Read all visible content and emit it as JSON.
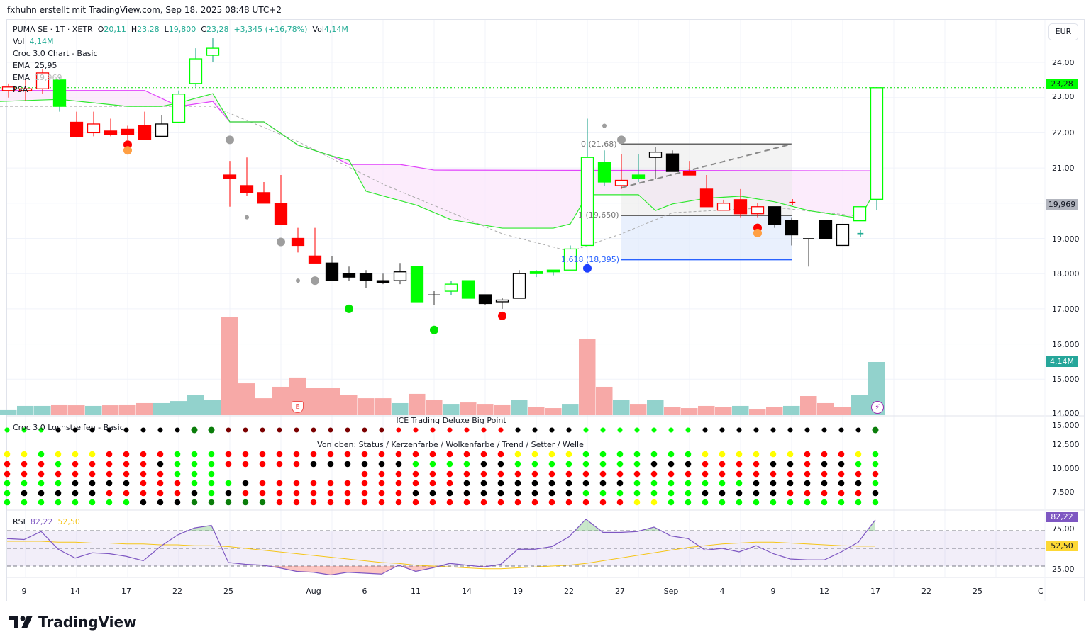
{
  "header": {
    "credit": "fxhuhn erstellt mit TradingView.com, Sep 18, 2025 08:48 UTC+2"
  },
  "legend": {
    "symbol": "PUMA SE · 1T · XETR",
    "o_label": "O",
    "o": "20,11",
    "h_label": "H",
    "h": "23,28",
    "l_label": "L",
    "l": "19,800",
    "c_label": "C",
    "c": "23,28",
    "change": "+3,345 (+16,78%)",
    "vol_label": "Vol",
    "vol": "4,14M",
    "vol_row_label": "Vol",
    "vol_row_value": "4,14M",
    "indicator": "Croc 3.0 Chart - Basic",
    "ema1_label": "EMA",
    "ema1_value": "25,95",
    "ema2_label": "EMA",
    "ema2_value": "19,969",
    "psa_label": "PSA"
  },
  "currency": "EUR",
  "price_axis": [
    "24,00",
    "23,00",
    "22,00",
    "21,00",
    "19,000",
    "18,000",
    "17,000",
    "16,000",
    "15,000",
    "14,000"
  ],
  "price_axis_values": [
    24,
    23,
    22,
    21,
    19,
    18,
    17,
    16,
    15,
    14
  ],
  "dots_axis": [
    "15,000",
    "12,500",
    "10,000",
    "7,500"
  ],
  "rsi_axis": [
    "75,00",
    "25,00"
  ],
  "badges": {
    "last_price": "23,28",
    "ema": "19,969",
    "volume": "4,14M",
    "rsi": "82,22",
    "rsi_ma": "52,50"
  },
  "colors": {
    "up": "#00ff00",
    "down": "#ff0000",
    "teal": "#089981",
    "ema_slow": "#e040fb",
    "ema_fast": "#2ee82e",
    "cloud": "#fbe7fb",
    "vol_up": "#92d2cc",
    "vol_down": "#f7a9a7",
    "rsi": "#7e57c2",
    "rsi_ma": "#f5c518"
  },
  "fib": {
    "level0": "0 (21,68)",
    "level1": "1 (19,650)",
    "level1618": "1,618 (18,395)",
    "p0": 21.68,
    "p1": 19.65,
    "p1618": 18.395,
    "from": 36,
    "to": 46
  },
  "x_axis": [
    {
      "i": 1,
      "t": "9"
    },
    {
      "i": 4,
      "t": "14"
    },
    {
      "i": 7,
      "t": "17"
    },
    {
      "i": 10,
      "t": "22"
    },
    {
      "i": 13,
      "t": "25"
    },
    {
      "i": 18,
      "t": "Aug"
    },
    {
      "i": 21,
      "t": "6"
    },
    {
      "i": 24,
      "t": "11"
    },
    {
      "i": 27,
      "t": "14"
    },
    {
      "i": 30,
      "t": "19"
    },
    {
      "i": 33,
      "t": "22"
    },
    {
      "i": 36,
      "t": "27"
    },
    {
      "i": 39,
      "t": "Sep"
    },
    {
      "i": 42,
      "t": "4"
    },
    {
      "i": 45,
      "t": "9"
    },
    {
      "i": 48,
      "t": "12"
    },
    {
      "i": 51,
      "t": "17"
    },
    {
      "i": 54,
      "t": "22"
    },
    {
      "i": 57,
      "t": "25"
    },
    {
      "i": 60.7,
      "t": "C"
    }
  ],
  "chart_data": {
    "type": "candlestick",
    "candles": [
      [
        23.3,
        23.4,
        23.0,
        23.2,
        "ro"
      ],
      [
        23.2,
        23.5,
        22.9,
        23.25,
        "ro"
      ],
      [
        23.25,
        23.8,
        23.1,
        23.7,
        "ro"
      ],
      [
        23.5,
        23.6,
        22.6,
        22.75,
        "gf"
      ],
      [
        22.3,
        22.6,
        21.9,
        21.9,
        "rf"
      ],
      [
        22.0,
        22.6,
        21.9,
        22.25,
        "ro"
      ],
      [
        22.05,
        22.4,
        21.9,
        21.95,
        "rf"
      ],
      [
        22.1,
        22.2,
        21.8,
        21.95,
        "rf"
      ],
      [
        22.2,
        22.6,
        21.8,
        21.8,
        "rf"
      ],
      [
        21.9,
        22.5,
        21.9,
        22.25,
        "ko"
      ],
      [
        22.3,
        23.2,
        22.3,
        23.1,
        "go"
      ],
      [
        23.4,
        24.4,
        23.3,
        24.1,
        "go"
      ],
      [
        24.2,
        24.7,
        24.0,
        24.4,
        "go"
      ],
      [
        20.8,
        21.2,
        19.9,
        20.7,
        "rf"
      ],
      [
        20.5,
        21.3,
        20.2,
        20.3,
        "rf"
      ],
      [
        20.3,
        20.6,
        20.0,
        20.0,
        "rf"
      ],
      [
        20.0,
        20.8,
        19.4,
        19.4,
        "rf"
      ],
      [
        19.0,
        19.3,
        18.6,
        18.8,
        "rf"
      ],
      [
        18.5,
        19.3,
        18.3,
        18.3,
        "rf"
      ],
      [
        18.3,
        18.5,
        17.8,
        17.8,
        "kf"
      ],
      [
        18.0,
        18.2,
        17.8,
        17.9,
        "kf"
      ],
      [
        18.0,
        18.1,
        17.6,
        17.8,
        "kf"
      ],
      [
        17.8,
        18.0,
        17.7,
        17.75,
        "kf"
      ],
      [
        17.8,
        18.3,
        17.7,
        18.05,
        "ko"
      ],
      [
        18.2,
        18.2,
        17.2,
        17.2,
        "gf"
      ],
      [
        17.4,
        17.5,
        17.1,
        17.4,
        "d"
      ],
      [
        17.5,
        17.8,
        17.4,
        17.7,
        "go"
      ],
      [
        17.3,
        17.8,
        17.3,
        17.8,
        "gf"
      ],
      [
        17.4,
        17.4,
        17.1,
        17.15,
        "kf"
      ],
      [
        17.2,
        17.3,
        17.0,
        17.25,
        "ko"
      ],
      [
        17.3,
        18.1,
        17.3,
        18.0,
        "ko"
      ],
      [
        18.0,
        18.1,
        17.9,
        18.05,
        "gf"
      ],
      [
        18.05,
        18.1,
        17.95,
        18.1,
        "gf"
      ],
      [
        18.1,
        18.8,
        18.1,
        18.7,
        "go"
      ],
      [
        18.8,
        22.4,
        18.8,
        21.3,
        "go"
      ],
      [
        20.6,
        21.5,
        20.5,
        21.15,
        "gf"
      ],
      [
        20.65,
        21.4,
        20.4,
        20.5,
        "ro"
      ],
      [
        20.7,
        21.4,
        20.6,
        20.8,
        "gf"
      ],
      [
        21.3,
        21.6,
        20.7,
        21.45,
        "ko"
      ],
      [
        21.4,
        21.5,
        20.9,
        20.9,
        "kf"
      ],
      [
        20.9,
        21.2,
        20.8,
        20.8,
        "rf"
      ],
      [
        20.4,
        20.8,
        19.9,
        19.9,
        "rf"
      ],
      [
        20.0,
        20.1,
        19.8,
        19.8,
        "ro"
      ],
      [
        20.1,
        20.4,
        19.6,
        19.7,
        "rf"
      ],
      [
        19.9,
        20.0,
        19.6,
        19.7,
        "ro"
      ],
      [
        19.9,
        19.9,
        19.3,
        19.4,
        "kf"
      ],
      [
        19.5,
        19.6,
        18.8,
        19.1,
        "kf"
      ],
      [
        19.0,
        19.0,
        18.2,
        19.0,
        "d"
      ],
      [
        19.0,
        19.5,
        19.0,
        19.5,
        "kf"
      ],
      [
        18.8,
        19.4,
        18.8,
        19.4,
        "ko"
      ],
      [
        19.5,
        19.9,
        19.5,
        19.9,
        "go"
      ],
      [
        20.11,
        23.28,
        19.8,
        23.28,
        "go"
      ]
    ],
    "volume_m": [
      0.39,
      0.72,
      0.72,
      0.83,
      0.77,
      0.72,
      0.77,
      0.83,
      0.94,
      0.94,
      1.1,
      1.55,
      1.16,
      7.67,
      2.48,
      1.32,
      2.21,
      2.93,
      2.1,
      2.1,
      1.6,
      1.32,
      1.32,
      0.94,
      1.66,
      1.16,
      0.88,
      0.99,
      0.88,
      0.83,
      1.21,
      0.66,
      0.55,
      0.88,
      5.96,
      2.21,
      1.21,
      0.88,
      1.21,
      0.66,
      0.55,
      0.72,
      0.66,
      0.72,
      0.44,
      0.66,
      0.72,
      1.49,
      0.94,
      0.66,
      1.55,
      4.14
    ],
    "volume_dir": "uuudduddduuuudddddddddduddudddudduddududdddudduddduuu",
    "ema_slow": [
      [
        -0.5,
        23.2
      ],
      [
        8,
        23.2
      ],
      [
        10,
        22.75
      ],
      [
        12,
        22.89
      ],
      [
        13,
        22.31
      ],
      [
        15,
        22.31
      ],
      [
        17,
        21.65
      ],
      [
        19,
        21.34
      ],
      [
        20,
        21.1
      ],
      [
        23,
        21.1
      ],
      [
        25,
        20.94
      ],
      [
        51,
        20.92
      ]
    ],
    "ema_fast": [
      [
        -0.5,
        22.89
      ],
      [
        3,
        22.95
      ],
      [
        7,
        22.75
      ],
      [
        9,
        22.75
      ],
      [
        10,
        22.85
      ],
      [
        12,
        23.11
      ],
      [
        13,
        22.31
      ],
      [
        15,
        22.31
      ],
      [
        17,
        21.65
      ],
      [
        19,
        21.34
      ],
      [
        20,
        21.22
      ],
      [
        21,
        20.34
      ],
      [
        24,
        19.94
      ],
      [
        26,
        19.53
      ],
      [
        29,
        19.29
      ],
      [
        32,
        19.29
      ],
      [
        33,
        19.41
      ],
      [
        34,
        20.24
      ],
      [
        35,
        20.24
      ],
      [
        37,
        20.24
      ],
      [
        38,
        19.79
      ],
      [
        39,
        19.98
      ],
      [
        41,
        20.14
      ],
      [
        43,
        20.2
      ],
      [
        45,
        20.04
      ],
      [
        47,
        19.79
      ],
      [
        50,
        19.57
      ],
      [
        51,
        20.44
      ]
    ],
    "psa": [
      [
        -0.5,
        22.75
      ],
      [
        12,
        22.75
      ],
      [
        17,
        21.75
      ],
      [
        22,
        20.54
      ],
      [
        29,
        19.13
      ],
      [
        33,
        18.63
      ],
      [
        36,
        19.13
      ],
      [
        39,
        19.73
      ],
      [
        45,
        19.88
      ],
      [
        50,
        19.63
      ]
    ],
    "markers": [
      [
        7,
        21.66,
        "#ff0000"
      ],
      [
        7,
        21.5,
        "#ff9f43"
      ],
      [
        13,
        21.8,
        "#9e9e9e"
      ],
      [
        14,
        19.6,
        "#9e9e9e"
      ],
      [
        16,
        18.9,
        "#9e9e9e"
      ],
      [
        17,
        17.8,
        "#9e9e9e"
      ],
      [
        18,
        17.8,
        "#9e9e9e"
      ],
      [
        20,
        17.0,
        "#00e600"
      ],
      [
        25,
        16.4,
        "#00e600"
      ],
      [
        29,
        16.8,
        "#ff0000"
      ],
      [
        34,
        18.15,
        "#1e40ff"
      ],
      [
        35,
        22.2,
        "#9e9e9e"
      ],
      [
        36,
        21.8,
        "#9e9e9e"
      ],
      [
        44,
        19.3,
        "#ff0000"
      ],
      [
        44,
        19.15,
        "#ff9f43"
      ]
    ],
    "rsi": [
      61,
      60,
      69,
      49,
      39,
      45,
      44,
      41,
      36,
      52,
      65,
      73,
      76,
      34,
      32,
      31,
      28,
      24,
      23,
      20,
      23,
      22,
      21,
      31,
      24,
      28,
      33,
      31,
      29,
      32,
      49,
      49,
      52,
      63,
      83,
      68,
      68,
      69,
      74,
      64,
      61,
      48,
      50,
      46,
      53,
      44,
      38,
      37,
      37,
      46,
      57,
      82.22
    ],
    "rsi_ma": [
      58,
      58,
      58,
      57,
      57,
      56,
      56,
      55,
      55,
      54,
      54,
      53,
      53,
      52,
      50,
      48,
      46,
      44,
      42,
      40,
      38,
      36,
      34,
      33,
      31,
      30,
      29,
      28,
      27,
      27,
      28,
      29,
      30,
      31,
      33,
      36,
      39,
      42,
      45,
      48,
      51,
      53,
      55,
      56,
      57,
      57,
      56,
      55,
      54,
      53,
      52.5,
      52.5
    ],
    "rsi_levels": [
      70,
      50,
      30
    ]
  },
  "dots_pane": {
    "title": "Croc 3.0 Lochstreifen - Basic",
    "top_label": "ICE Trading Deluxe Big Point",
    "rows_label": "Von oben: Status / Kerzenfarbe / Wolkenfarbe / Trend / Setter / Welle",
    "big_point": "GGGKKKKKKKKggrrrrrrrrrrRRRRRRRKKKKGGGGGGGKKKKKKKKKKg",
    "rows": [
      "YYGYYYRRRRGGGRRRRRRRRRRRRRRRRRYYYYGGGGGGGYYYYYYRRRYG",
      "RRRGRRRRRKGGGRRRRRKKKKKKGGGGKKGGGGGGGGKKKRRRRKKRKKGG",
      "RRRRRRRRRRGGG________RRRRRRRRRRRRRRRRRRRRRRRRRRRRRRR",
      "GGGGKKKKRRRGGGKRRRRRRRRRRRRKKKKKKKKKKGGGGGGGKKKKKKKG",
      "GKKKKKRRRRRKGKRRRRRRRRRRKKKKKKKKKKGGGGGGGKKKKKRRRRRK",
      "GGGGGGGGKKKgggggRRRRRRRRRRRRRRRRRRRRRYYGGGGGGGGGGGGG"
    ],
    "color_map": {
      "G": "#00ff00",
      "g": "#0a7d0a",
      "K": "#000000",
      "R": "#ff0000",
      "r": "#7b0000",
      "Y": "#ffff00"
    }
  },
  "rsi_pane": {
    "label": "RSI",
    "value": "82,22",
    "ma_value": "52,50"
  },
  "volume_markers": {
    "earnings": "E"
  },
  "footer": {
    "brand": "TradingView"
  }
}
